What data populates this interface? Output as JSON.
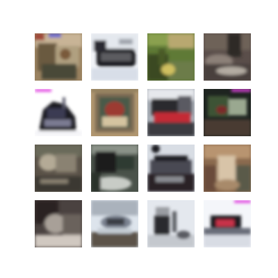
{
  "grid": {
    "rows": 4,
    "columns": 4,
    "tiles": [
      {
        "row": 1,
        "col": 1,
        "description_icon": "generated-image",
        "palette": [
          "#6b5a40",
          "#9a8260",
          "#4a4838",
          "#c8b496",
          "#b0a080"
        ]
      },
      {
        "row": 1,
        "col": 2,
        "description_icon": "generated-image",
        "palette": [
          "#f2f4f8",
          "#d8dee8",
          "#1c1c20",
          "#5c5c60",
          "#a0a6ae"
        ]
      },
      {
        "row": 1,
        "col": 3,
        "description_icon": "generated-image",
        "palette": [
          "#5f7a36",
          "#8aa050",
          "#3a4a20",
          "#b8a870",
          "#6c7c4a"
        ]
      },
      {
        "row": 1,
        "col": 4,
        "description_icon": "generated-image",
        "palette": [
          "#5a4e4a",
          "#8c8078",
          "#2e2a28",
          "#b4aca2",
          "#6e6258"
        ]
      },
      {
        "row": 2,
        "col": 1,
        "description_icon": "generated-image",
        "palette": [
          "#ffffff",
          "#1a1a22",
          "#3a3a52",
          "#7a7a92",
          "#c8c8d8"
        ]
      },
      {
        "row": 2,
        "col": 2,
        "description_icon": "generated-image",
        "palette": [
          "#7a6a52",
          "#b09670",
          "#4a5a48",
          "#9c3a30",
          "#d4c4a0"
        ]
      },
      {
        "row": 2,
        "col": 3,
        "description_icon": "generated-image",
        "palette": [
          "#2a2a2e",
          "#5a5a62",
          "#c42a36",
          "#aab0b8",
          "#e6e8ec"
        ]
      },
      {
        "row": 2,
        "col": 4,
        "description_icon": "generated-image",
        "palette": [
          "#1e2420",
          "#3e5236",
          "#7a2a2a",
          "#9aa890",
          "#4a3a30"
        ]
      },
      {
        "row": 3,
        "col": 1,
        "description_icon": "generated-image",
        "palette": [
          "#5a5248",
          "#8a8272",
          "#3a3830",
          "#b4aa96",
          "#6a6a5a"
        ]
      },
      {
        "row": 3,
        "col": 2,
        "description_icon": "generated-image",
        "palette": [
          "#1a1e1c",
          "#4a524a",
          "#8a9288",
          "#c8ccc6",
          "#2e3a32"
        ]
      },
      {
        "row": 3,
        "col": 3,
        "description_icon": "generated-image",
        "palette": [
          "#d8dde4",
          "#1e1e24",
          "#4a4a52",
          "#8a8c92",
          "#2a2226"
        ]
      },
      {
        "row": 3,
        "col": 4,
        "description_icon": "generated-image",
        "palette": [
          "#8a6a4e",
          "#b89470",
          "#6a4c3a",
          "#d8c4a8",
          "#5a5a48"
        ]
      },
      {
        "row": 4,
        "col": 1,
        "description_icon": "generated-image",
        "palette": [
          "#2a2424",
          "#6a625c",
          "#a8a098",
          "#4a4240",
          "#d0c8c0"
        ]
      },
      {
        "row": 4,
        "col": 2,
        "description_icon": "generated-image",
        "palette": [
          "#dde4ec",
          "#7a8290",
          "#3a3e44",
          "#aab2bc",
          "#5c5248"
        ]
      },
      {
        "row": 4,
        "col": 3,
        "description_icon": "generated-image",
        "palette": [
          "#e4e8ee",
          "#5a5c62",
          "#2a2a2e",
          "#9a9ca2",
          "#c4c8ce"
        ]
      },
      {
        "row": 4,
        "col": 4,
        "description_icon": "generated-image",
        "palette": [
          "#f4f6fa",
          "#c8324a",
          "#1a1a24",
          "#d8dce4",
          "#6a6e7a"
        ]
      }
    ]
  }
}
